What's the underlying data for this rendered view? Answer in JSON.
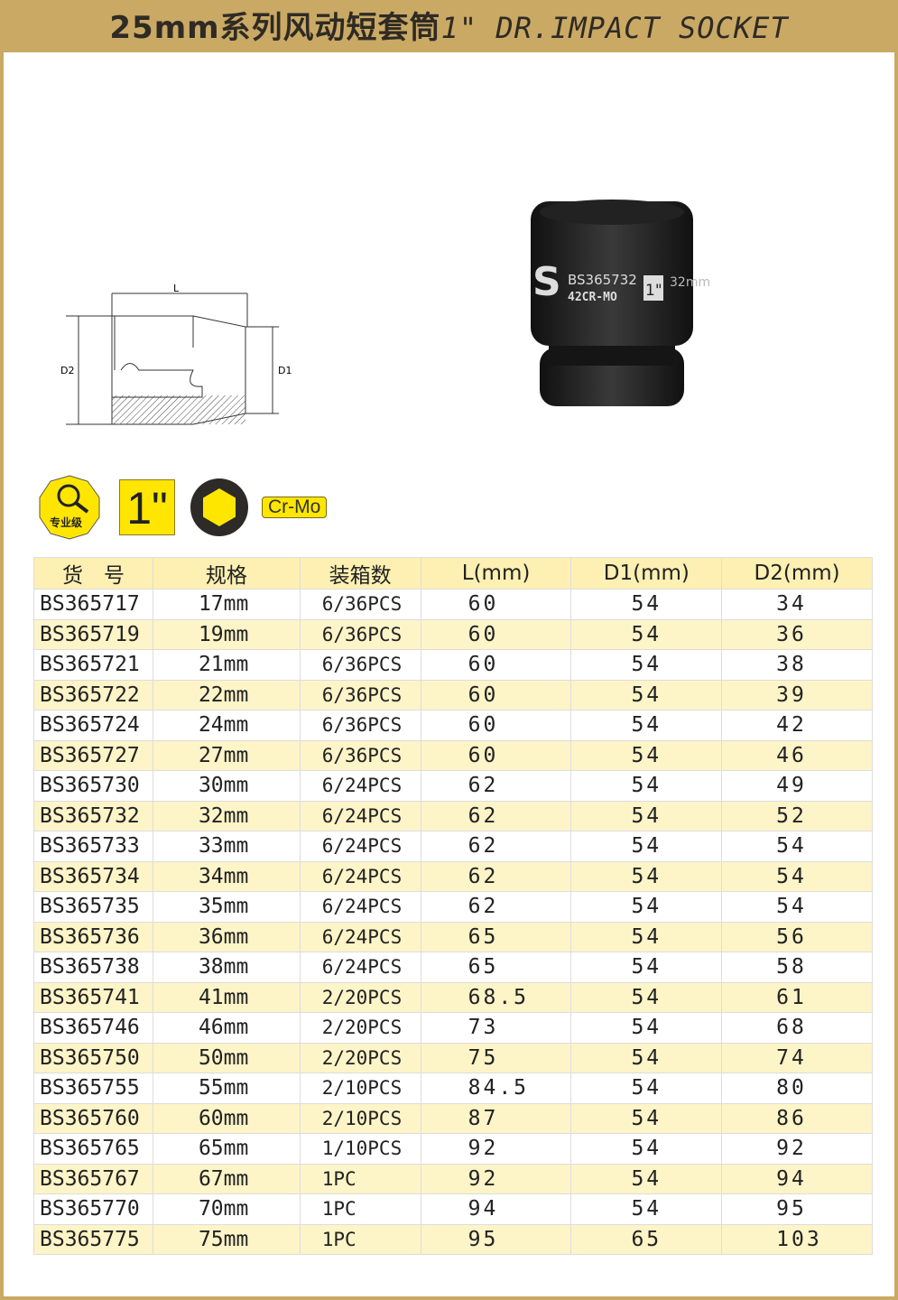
{
  "header": {
    "title_cn": "25mm系列风动短套筒",
    "title_en": "1\" DR.IMPACT SOCKET"
  },
  "drawing": {
    "label_l": "L",
    "label_d1": "D1",
    "label_d2": "D2"
  },
  "photo": {
    "brand": "S",
    "code": "BS365732",
    "material": "42CR-MO",
    "drive": "1\"",
    "size": "32mm"
  },
  "badges": {
    "grade": "专业级",
    "drive": "1\"",
    "material": "Cr-Mo",
    "grade_icon": "magnifier-gear-icon",
    "hex_icon": "hexagon-icon"
  },
  "table": {
    "headers": [
      "货　号",
      "规格",
      "装箱数",
      "L(mm)",
      "D1(mm)",
      "D2(mm)"
    ],
    "rows": [
      [
        "BS365717",
        "17mm",
        "6/36PCS",
        "60",
        "54",
        "34"
      ],
      [
        "BS365719",
        "19mm",
        "6/36PCS",
        "60",
        "54",
        "36"
      ],
      [
        "BS365721",
        "21mm",
        "6/36PCS",
        "60",
        "54",
        "38"
      ],
      [
        "BS365722",
        "22mm",
        "6/36PCS",
        "60",
        "54",
        "39"
      ],
      [
        "BS365724",
        "24mm",
        "6/36PCS",
        "60",
        "54",
        "42"
      ],
      [
        "BS365727",
        "27mm",
        "6/36PCS",
        "60",
        "54",
        "46"
      ],
      [
        "BS365730",
        "30mm",
        "6/24PCS",
        "62",
        "54",
        "49"
      ],
      [
        "BS365732",
        "32mm",
        "6/24PCS",
        "62",
        "54",
        "52"
      ],
      [
        "BS365733",
        "33mm",
        "6/24PCS",
        "62",
        "54",
        "54"
      ],
      [
        "BS365734",
        "34mm",
        "6/24PCS",
        "62",
        "54",
        "54"
      ],
      [
        "BS365735",
        "35mm",
        "6/24PCS",
        "62",
        "54",
        "54"
      ],
      [
        "BS365736",
        "36mm",
        "6/24PCS",
        "65",
        "54",
        "56"
      ],
      [
        "BS365738",
        "38mm",
        "6/24PCS",
        "65",
        "54",
        "58"
      ],
      [
        "BS365741",
        "41mm",
        "2/20PCS",
        "68.5",
        "54",
        "61"
      ],
      [
        "BS365746",
        "46mm",
        "2/20PCS",
        "73",
        "54",
        "68"
      ],
      [
        "BS365750",
        "50mm",
        "2/20PCS",
        "75",
        "54",
        "74"
      ],
      [
        "BS365755",
        "55mm",
        "2/10PCS",
        "84.5",
        "54",
        "80"
      ],
      [
        "BS365760",
        "60mm",
        "2/10PCS",
        "87",
        "54",
        "86"
      ],
      [
        "BS365765",
        "65mm",
        "1/10PCS",
        "92",
        "54",
        "92"
      ],
      [
        "BS365767",
        "67mm",
        "1PC",
        "92",
        "54",
        "94"
      ],
      [
        "BS365770",
        "70mm",
        "1PC",
        "94",
        "54",
        "95"
      ],
      [
        "BS365775",
        "75mm",
        "1PC",
        "95",
        "65",
        "103"
      ]
    ]
  }
}
